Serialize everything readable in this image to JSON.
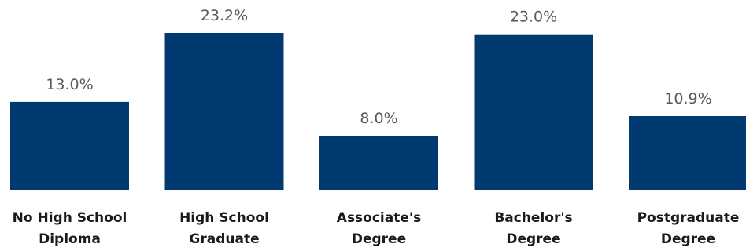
{
  "chart_data": {
    "type": "bar",
    "categories": [
      [
        "No High School",
        "Diploma"
      ],
      [
        "High School",
        "Graduate"
      ],
      [
        "Associate's",
        "Degree"
      ],
      [
        "Bachelor's Degree"
      ],
      [
        "Postgraduate",
        "Degree"
      ]
    ],
    "values": [
      13.0,
      23.2,
      8.0,
      23.0,
      10.9
    ],
    "value_labels": [
      "13.0%",
      "23.2%",
      "8.0%",
      "23.0%",
      "10.9%"
    ],
    "title": "",
    "xlabel": "",
    "ylabel": "",
    "ylim": [
      0,
      23.2
    ],
    "grid": false,
    "legend": "none",
    "bar_color": "#003a70"
  }
}
